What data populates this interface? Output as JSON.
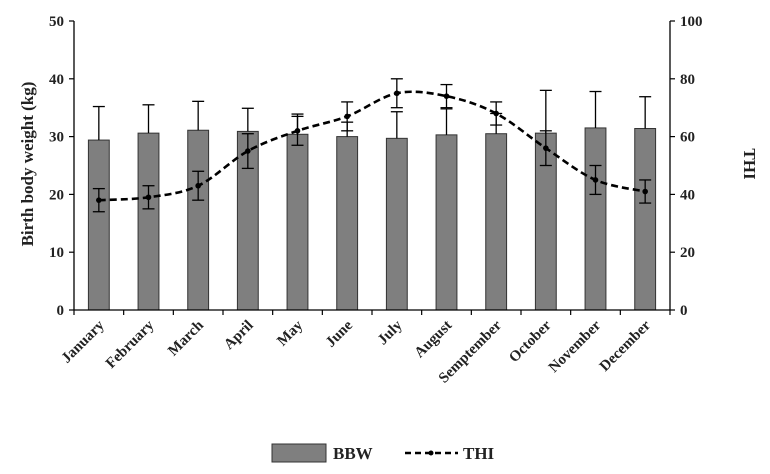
{
  "chart_data": {
    "type": "bar",
    "categories": [
      "January",
      "February",
      "March",
      "April",
      "May",
      "June",
      "July",
      "August",
      "Semptember",
      "October",
      "November",
      "December"
    ],
    "series": [
      {
        "name": "BBW",
        "type": "bar",
        "axis": "left",
        "values": [
          29.4,
          30.6,
          31.1,
          30.9,
          30.4,
          30.0,
          29.7,
          30.3,
          30.5,
          30.6,
          31.5,
          31.4
        ],
        "error": [
          5.8,
          4.9,
          5.0,
          4.0,
          3.5,
          2.5,
          4.6,
          4.5,
          3.5,
          7.4,
          6.3,
          5.5
        ],
        "color": "#7f7f7f"
      },
      {
        "name": "THI",
        "type": "line",
        "axis": "right",
        "dashed": true,
        "values": [
          38,
          39,
          43,
          55,
          62,
          67,
          75,
          74,
          68,
          56,
          45,
          41
        ],
        "error": [
          4,
          4,
          5,
          6,
          5,
          5,
          5,
          4,
          4,
          6,
          5,
          4
        ],
        "color": "#000000"
      }
    ],
    "ylabel": "Birth body weight (kg)",
    "y2label": "THI",
    "xlabel": "",
    "title": "",
    "ylim": [
      0,
      50
    ],
    "y2lim": [
      0,
      100
    ],
    "yticks": [
      "0",
      "10",
      "20",
      "30",
      "40",
      "50"
    ],
    "y2ticks": [
      "0",
      "20",
      "40",
      "60",
      "80",
      "100"
    ],
    "grid": false,
    "legend_position": "bottom"
  }
}
